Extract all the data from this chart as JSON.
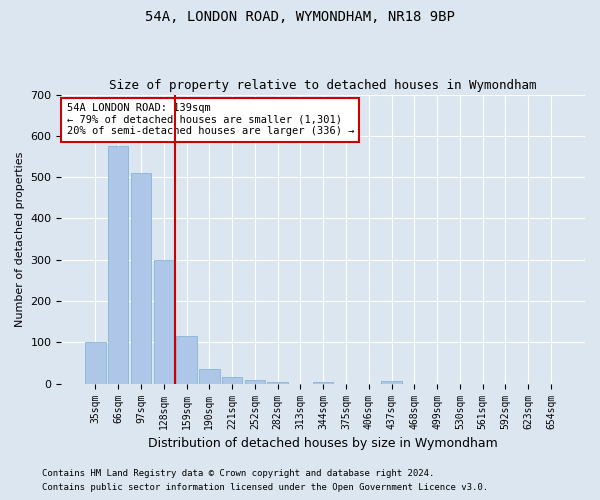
{
  "title1": "54A, LONDON ROAD, WYMONDHAM, NR18 9BP",
  "title2": "Size of property relative to detached houses in Wymondham",
  "xlabel": "Distribution of detached houses by size in Wymondham",
  "ylabel": "Number of detached properties",
  "footnote1": "Contains HM Land Registry data © Crown copyright and database right 2024.",
  "footnote2": "Contains public sector information licensed under the Open Government Licence v3.0.",
  "bar_labels": [
    "35sqm",
    "66sqm",
    "97sqm",
    "128sqm",
    "159sqm",
    "190sqm",
    "221sqm",
    "252sqm",
    "282sqm",
    "313sqm",
    "344sqm",
    "375sqm",
    "406sqm",
    "437sqm",
    "468sqm",
    "499sqm",
    "530sqm",
    "561sqm",
    "592sqm",
    "623sqm",
    "654sqm"
  ],
  "bar_values": [
    100,
    575,
    510,
    300,
    115,
    35,
    15,
    8,
    5,
    0,
    5,
    0,
    0,
    7,
    0,
    0,
    0,
    0,
    0,
    0,
    0
  ],
  "bar_color": "#aec6e8",
  "bar_edge_color": "#7aafd4",
  "vline_x": 3.5,
  "vline_color": "#cc0000",
  "annotation_text": "54A LONDON ROAD: 139sqm\n← 79% of detached houses are smaller (1,301)\n20% of semi-detached houses are larger (336) →",
  "annotation_box_color": "#ffffff",
  "annotation_box_edge": "#cc0000",
  "ylim": [
    0,
    700
  ],
  "yticks": [
    0,
    100,
    200,
    300,
    400,
    500,
    600,
    700
  ],
  "background_color": "#dce6f0",
  "plot_bg_color": "#dce6f0",
  "grid_color": "#ffffff",
  "title1_fontsize": 10,
  "title2_fontsize": 9,
  "xlabel_fontsize": 9,
  "ylabel_fontsize": 8,
  "footnote_fontsize": 6.5
}
